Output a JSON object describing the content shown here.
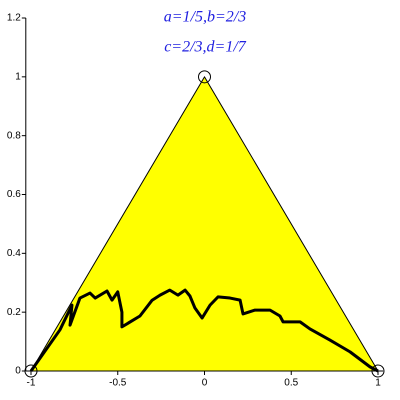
{
  "chart_data": {
    "type": "line",
    "annotations": [
      "a=1/5,b=2/3",
      "c=2/3,d=1/7"
    ],
    "annotation_color": "#2020e0",
    "xlim": [
      -1.03,
      1.03
    ],
    "ylim": [
      0,
      1.2
    ],
    "xticks": [
      -1,
      -0.5,
      0,
      0.5,
      1
    ],
    "yticks": [
      0,
      0.2,
      0.4,
      0.6,
      0.8,
      1,
      1.2
    ],
    "series": [
      {
        "color": "#000000",
        "fill": "#ffff00",
        "x": [
          -1,
          0,
          1
        ],
        "values": [
          0,
          1,
          0
        ]
      },
      {
        "color": "#000000",
        "width": 3,
        "x": [
          -1,
          -0.833,
          -0.764,
          -0.775,
          -0.718,
          -0.66,
          -0.63,
          -0.562,
          -0.533,
          -0.5,
          -0.476,
          -0.476,
          -0.372,
          -0.303,
          -0.256,
          -0.2,
          -0.153,
          -0.112,
          -0.084,
          -0.055,
          -0.014,
          0.032,
          0.078,
          0.147,
          0.205,
          0.222,
          0.291,
          0.378,
          0.435,
          0.453,
          0.551,
          0.608,
          0.723,
          0.839,
          0.954,
          1
        ],
        "values": [
          0,
          0.14,
          0.224,
          0.156,
          0.248,
          0.265,
          0.248,
          0.272,
          0.241,
          0.269,
          0.2,
          0.15,
          0.187,
          0.24,
          0.258,
          0.275,
          0.258,
          0.275,
          0.255,
          0.214,
          0.18,
          0.224,
          0.252,
          0.248,
          0.241,
          0.194,
          0.207,
          0.207,
          0.187,
          0.167,
          0.167,
          0.143,
          0.105,
          0.065,
          0.014,
          0
        ]
      },
      {
        "color": "#000000",
        "marker": "circle",
        "x": [
          -1,
          0,
          1
        ],
        "values": [
          0,
          1,
          0
        ]
      }
    ]
  }
}
